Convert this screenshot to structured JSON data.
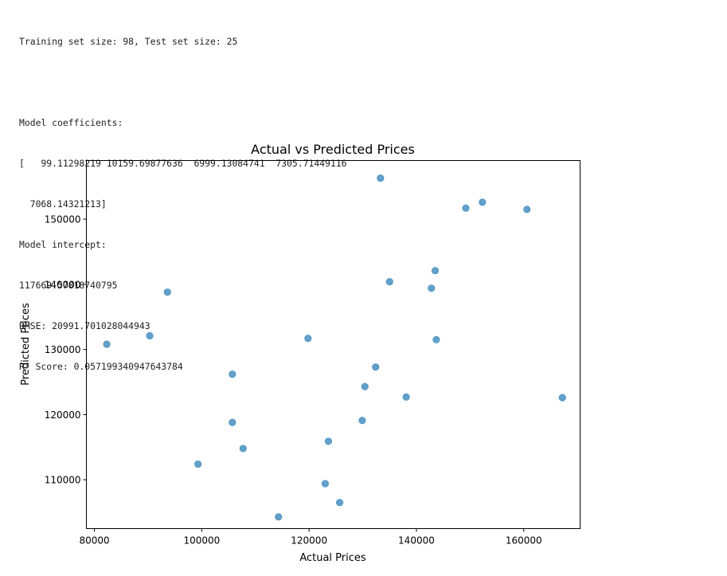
{
  "output": {
    "lines": [
      "Training set size: 98, Test set size: 25",
      "",
      "Model coefficients:",
      "[   99.11298219 10159.69877636  6999.13084741  7305.71449116",
      "  7068.14321213]",
      "Model intercept:",
      "117669.57818740795",
      "RMSE: 20991.701028044943",
      "R² Score: 0.057199340947643784"
    ]
  },
  "chart_data": {
    "type": "scatter",
    "title": "Actual vs Predicted Prices",
    "xlabel": "Actual Prices",
    "ylabel": "Predicted Prices",
    "xlim": [
      78500,
      170500
    ],
    "ylim": [
      102500,
      159000
    ],
    "x_ticks": [
      80000,
      100000,
      120000,
      140000,
      160000
    ],
    "y_ticks": [
      110000,
      120000,
      130000,
      140000,
      150000
    ],
    "x_tick_labels": [
      "80000",
      "100000",
      "120000",
      "140000",
      "160000"
    ],
    "y_tick_labels": [
      "110000",
      "120000",
      "130000",
      "140000",
      "150000"
    ],
    "grid": false,
    "marker_color": "#1f77b4",
    "marker_alpha": 0.7,
    "points": [
      {
        "x": 82300,
        "y": 130800
      },
      {
        "x": 90300,
        "y": 132100
      },
      {
        "x": 93600,
        "y": 138800
      },
      {
        "x": 99300,
        "y": 112400
      },
      {
        "x": 105700,
        "y": 126200
      },
      {
        "x": 105700,
        "y": 118800
      },
      {
        "x": 107700,
        "y": 114800
      },
      {
        "x": 114300,
        "y": 104300
      },
      {
        "x": 119800,
        "y": 131700
      },
      {
        "x": 123000,
        "y": 109400
      },
      {
        "x": 123600,
        "y": 115900
      },
      {
        "x": 125700,
        "y": 106500
      },
      {
        "x": 129900,
        "y": 119100
      },
      {
        "x": 130400,
        "y": 124300
      },
      {
        "x": 132400,
        "y": 127300
      },
      {
        "x": 133300,
        "y": 156300
      },
      {
        "x": 135000,
        "y": 140400
      },
      {
        "x": 138100,
        "y": 122700
      },
      {
        "x": 142800,
        "y": 139400
      },
      {
        "x": 143500,
        "y": 142100
      },
      {
        "x": 143700,
        "y": 131500
      },
      {
        "x": 149200,
        "y": 151700
      },
      {
        "x": 152300,
        "y": 152600
      },
      {
        "x": 160600,
        "y": 151500
      },
      {
        "x": 167200,
        "y": 122600
      }
    ]
  }
}
